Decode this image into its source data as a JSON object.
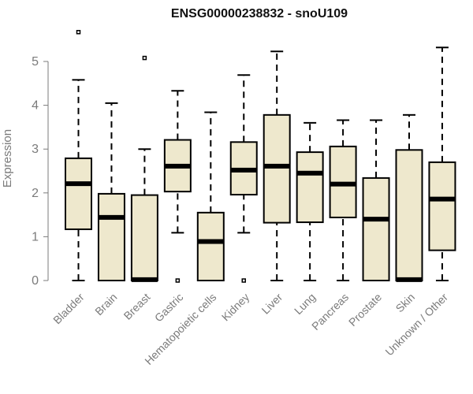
{
  "chart_data": {
    "type": "box",
    "title": "ENSG00000238832 - snoU109",
    "ylabel": "Expression",
    "xlabel": "",
    "ylim": [
      0,
      5.8
    ],
    "yticks": [
      0,
      1,
      2,
      3,
      4,
      5
    ],
    "box_fill": "#EEE8CD",
    "box_stroke": "#000000",
    "categories": [
      "Bladder",
      "Brain",
      "Breast",
      "Gastric",
      "Hematopoietic cells",
      "Kidney",
      "Liver",
      "Lung",
      "Pancreas",
      "Prostate",
      "Skin",
      "Unknown / Other"
    ],
    "boxes": [
      {
        "q1": 1.17,
        "median": 2.21,
        "q3": 2.79,
        "whisker_low": 0.0,
        "whisker_high": 4.58,
        "outliers": [
          5.67
        ]
      },
      {
        "q1": 0.0,
        "median": 1.44,
        "q3": 1.98,
        "whisker_low": 0.0,
        "whisker_high": 4.05,
        "outliers": []
      },
      {
        "q1": 0.0,
        "median": 0.02,
        "q3": 1.95,
        "whisker_low": 0.0,
        "whisker_high": 3.0,
        "outliers": [
          5.08
        ]
      },
      {
        "q1": 2.03,
        "median": 2.61,
        "q3": 3.21,
        "whisker_low": 1.09,
        "whisker_high": 4.33,
        "outliers": [
          0.0
        ]
      },
      {
        "q1": 0.0,
        "median": 0.89,
        "q3": 1.55,
        "whisker_low": 0.0,
        "whisker_high": 3.84,
        "outliers": []
      },
      {
        "q1": 1.96,
        "median": 2.52,
        "q3": 3.16,
        "whisker_low": 1.09,
        "whisker_high": 4.69,
        "outliers": [
          0.0
        ]
      },
      {
        "q1": 1.32,
        "median": 2.61,
        "q3": 3.78,
        "whisker_low": 0.0,
        "whisker_high": 5.23,
        "outliers": []
      },
      {
        "q1": 1.33,
        "median": 2.45,
        "q3": 2.93,
        "whisker_low": 0.0,
        "whisker_high": 3.6,
        "outliers": []
      },
      {
        "q1": 1.44,
        "median": 2.2,
        "q3": 3.06,
        "whisker_low": 0.0,
        "whisker_high": 3.66,
        "outliers": []
      },
      {
        "q1": 0.0,
        "median": 1.4,
        "q3": 2.34,
        "whisker_low": 0.0,
        "whisker_high": 3.66,
        "outliers": []
      },
      {
        "q1": 0.0,
        "median": 0.02,
        "q3": 2.98,
        "whisker_low": 0.0,
        "whisker_high": 3.78,
        "outliers": []
      },
      {
        "q1": 0.69,
        "median": 1.86,
        "q3": 2.7,
        "whisker_low": 0.0,
        "whisker_high": 5.32,
        "outliers": []
      }
    ]
  }
}
